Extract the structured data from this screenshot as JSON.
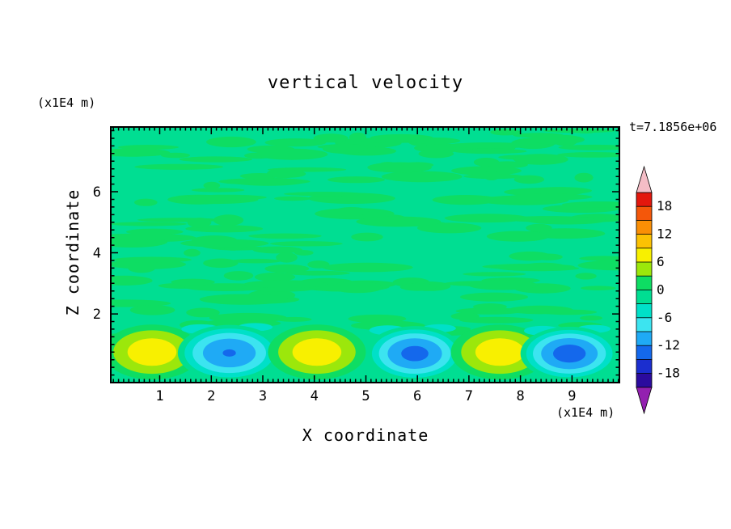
{
  "title": "vertical velocity",
  "timestamp_label": "t=7.1856e+06",
  "axes": {
    "x": {
      "label": "X coordinate",
      "unit_label": "(x1E4 m)"
    },
    "z": {
      "label": "Z coordinate",
      "unit_label": "(x1E4 m)"
    }
  },
  "colorbar": {
    "tick_labels": [
      "18",
      "12",
      "6",
      "0",
      "-6",
      "-12",
      "-18"
    ],
    "tick_values": [
      18,
      12,
      6,
      0,
      -6,
      -12,
      -18
    ]
  },
  "chart_data": {
    "type": "heatmap",
    "subtype": "filled-contour",
    "title": "vertical velocity",
    "xlabel": "X coordinate",
    "ylabel": "Z coordinate",
    "x_unit": "(x1E4 m)",
    "z_unit": "(x1E4 m)",
    "time_label": "t=7.1856e+06",
    "x_range": [
      0.05,
      9.92
    ],
    "z_range": [
      -0.25,
      8.12
    ],
    "x_major_ticks": [
      1,
      2,
      3,
      4,
      5,
      6,
      7,
      8,
      9
    ],
    "z_major_ticks": [
      2,
      4,
      6
    ],
    "x_minor_step": 0.1,
    "z_minor_step": 0.25,
    "contour_interval": 3,
    "value_bands": [
      {
        "from": 18,
        "to": 21,
        "color": "#e3170d"
      },
      {
        "from": 15,
        "to": 18,
        "color": "#f4570a"
      },
      {
        "from": 12,
        "to": 15,
        "color": "#fa8f05"
      },
      {
        "from": 9,
        "to": 12,
        "color": "#fcc203"
      },
      {
        "from": 6,
        "to": 9,
        "color": "#f8f000"
      },
      {
        "from": 3,
        "to": 6,
        "color": "#9ce70b"
      },
      {
        "from": 0,
        "to": 3,
        "color": "#0edd63"
      },
      {
        "from": -3,
        "to": 0,
        "color": "#00de92"
      },
      {
        "from": -6,
        "to": -3,
        "color": "#00e0c8"
      },
      {
        "from": -9,
        "to": -6,
        "color": "#3ce4f0"
      },
      {
        "from": -12,
        "to": -9,
        "color": "#1faaf5"
      },
      {
        "from": -15,
        "to": -12,
        "color": "#1468ec"
      },
      {
        "from": -18,
        "to": -15,
        "color": "#1b2ecf"
      },
      {
        "from": -21,
        "to": -18,
        "color": "#2b0b9e"
      }
    ],
    "over_color": "#f4bdc6",
    "under_color": "#9320b0",
    "background_band": [
      -3,
      0
    ],
    "interior_texture_band": [
      0,
      3
    ],
    "field_description": "near-zero mottled vertical velocity in the interior; alternating convective updrafts (yellow cores) and downdrafts (blue cores) along the bottom boundary",
    "features": [
      {
        "kind": "updraft",
        "x": 0.85,
        "z": 0.75,
        "peak": 8,
        "rx": 0.95,
        "rz": 0.9
      },
      {
        "kind": "downdraft",
        "x": 2.35,
        "z": 0.72,
        "peak": -12.2,
        "rx": 1.0,
        "rz": 0.92
      },
      {
        "kind": "updraft",
        "x": 4.05,
        "z": 0.75,
        "peak": 8,
        "rx": 0.95,
        "rz": 0.9
      },
      {
        "kind": "downdraft",
        "x": 5.95,
        "z": 0.7,
        "peak": -13,
        "rx": 0.95,
        "rz": 0.9
      },
      {
        "kind": "updraft",
        "x": 7.6,
        "z": 0.75,
        "peak": 8,
        "rx": 0.95,
        "rz": 0.9
      },
      {
        "kind": "downdraft",
        "x": 8.95,
        "z": 0.7,
        "peak": -13.5,
        "rx": 0.95,
        "rz": 0.88
      }
    ]
  }
}
